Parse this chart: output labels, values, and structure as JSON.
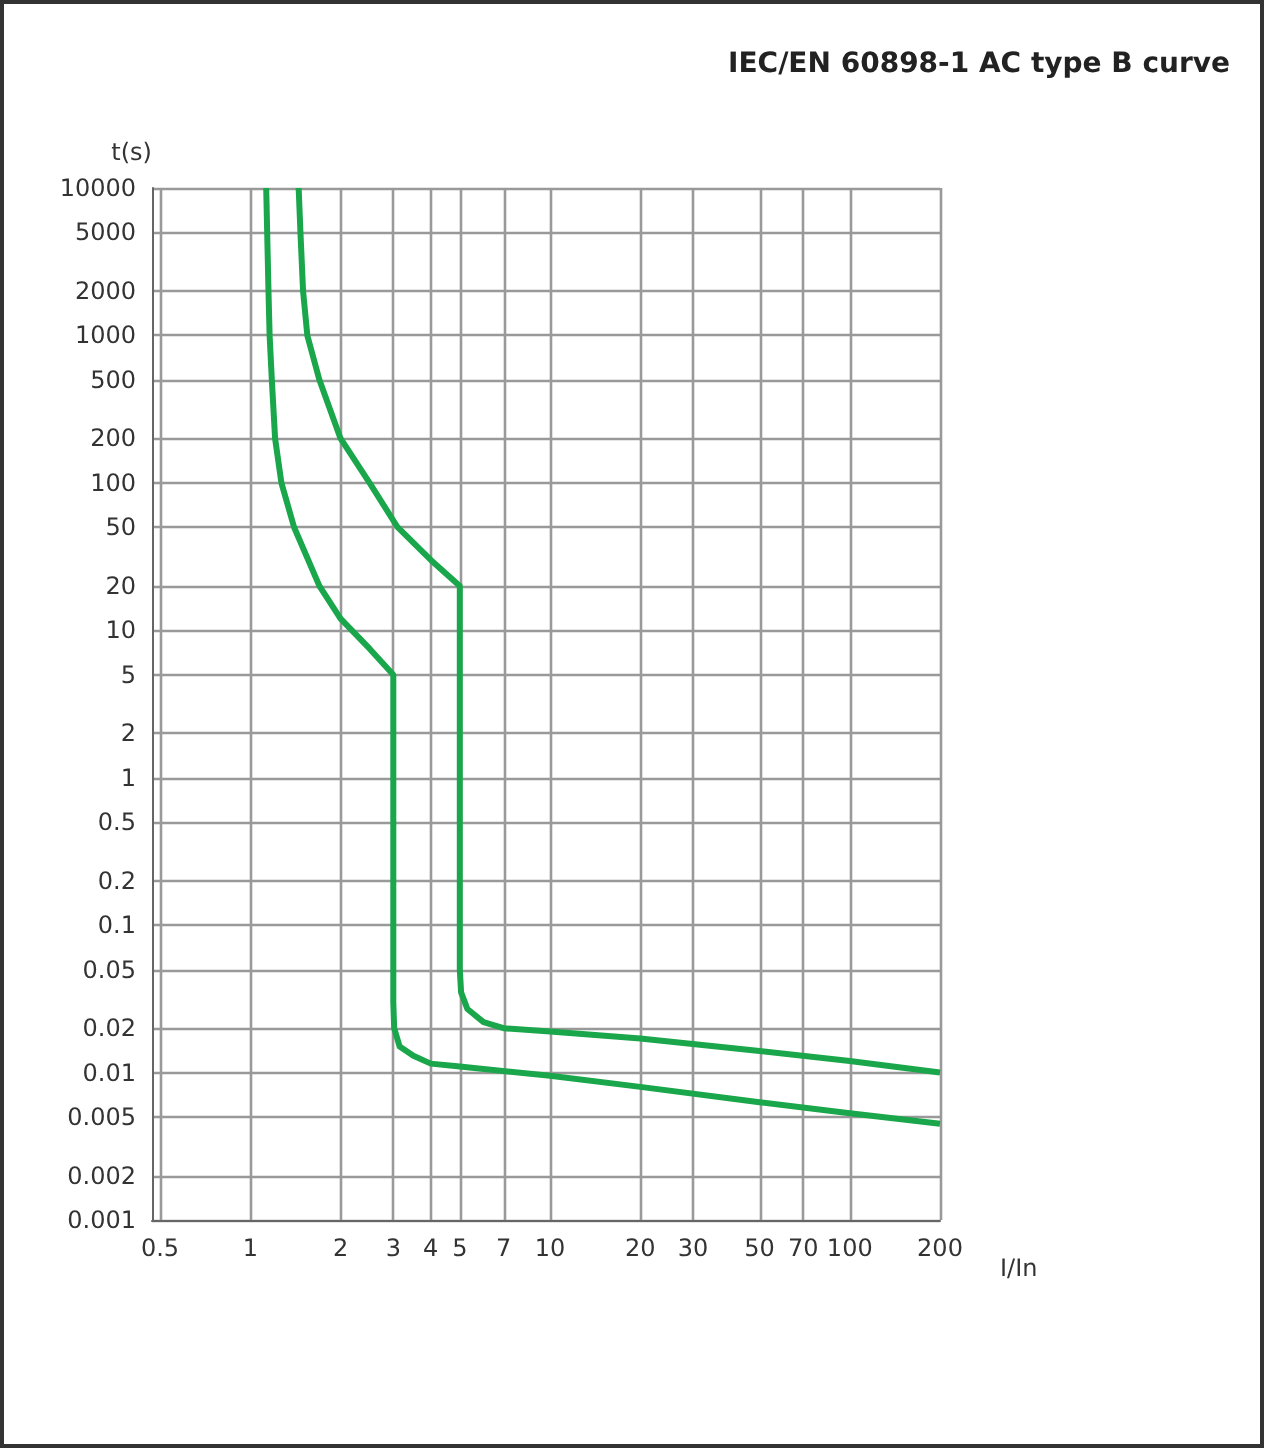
{
  "chart_data": {
    "type": "line",
    "title": "IEC/EN 60898-1 AC type B curve",
    "xlabel": "I/In",
    "ylabel": "t(s)",
    "log": "xy",
    "grid": true,
    "marker": "none",
    "xlim": [
      0.47,
      200
    ],
    "xticks": [
      0.5,
      1,
      2,
      3,
      4,
      5,
      7,
      10,
      20,
      30,
      50,
      70,
      100,
      200
    ],
    "ylim": [
      0.001,
      10000
    ],
    "yticks": [
      0.001,
      0.002,
      0.005,
      0.01,
      0.02,
      0.05,
      0.1,
      0.2,
      0.5,
      1,
      2,
      5,
      10,
      20,
      50,
      100,
      200,
      500,
      1000,
      2000,
      5000,
      10000
    ],
    "series": [
      {
        "color": "#1aa64b",
        "x": [
          1.13,
          1.15,
          1.16,
          1.18,
          1.21,
          1.27,
          1.4,
          1.7,
          2,
          2.5,
          3,
          3,
          3.02,
          3.15,
          3.5,
          4,
          5,
          10,
          20,
          50,
          100,
          200
        ],
        "values": [
          10000,
          2000,
          1000,
          500,
          200,
          100,
          50,
          20,
          12,
          7.5,
          5,
          0.03,
          0.02,
          0.015,
          0.013,
          0.0115,
          0.011,
          0.0095,
          0.008,
          0.0063,
          0.0053,
          0.0045
        ]
      },
      {
        "color": "#1aa64b",
        "x": [
          1.45,
          1.47,
          1.5,
          1.55,
          1.7,
          2,
          2.5,
          3.1,
          4,
          5,
          5,
          5.05,
          5.3,
          6,
          7,
          10,
          20,
          50,
          100,
          200
        ],
        "values": [
          10000,
          5000,
          2000,
          1000,
          500,
          200,
          100,
          50,
          30,
          20,
          0.05,
          0.035,
          0.027,
          0.022,
          0.02,
          0.019,
          0.017,
          0.014,
          0.012,
          0.01
        ]
      }
    ]
  }
}
